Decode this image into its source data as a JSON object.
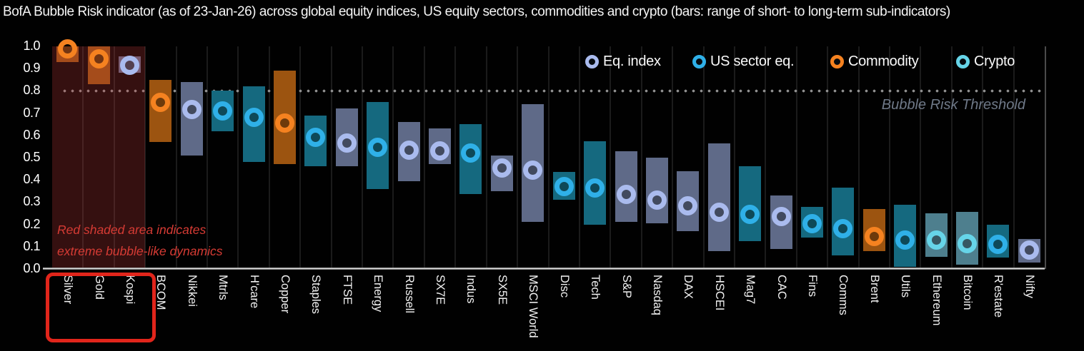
{
  "title": "BofA Bubble Risk indicator (as of 23-Jan-26) across global equity indices, US equity sectors, commodities and crypto (bars: range of short- to long-term sub-indicators)",
  "annotations": {
    "red_area_note_line1": "Red shaded area indicates",
    "red_area_note_line2": "extreme bubble-like dynamics",
    "threshold_label": "Bubble Risk Threshold"
  },
  "legend": [
    {
      "label": "Eq. index",
      "group": "eq_index"
    },
    {
      "label": "US sector eq.",
      "group": "us_sector"
    },
    {
      "label": "Commodity",
      "group": "commodity"
    },
    {
      "label": "Crypto",
      "group": "crypto"
    }
  ],
  "colors": {
    "background": "#010101",
    "title_text": "#f5f5f5",
    "eq_index_bar": "#5f6a88",
    "eq_index_dot": "#aabbee",
    "us_sector_bar": "#15697f",
    "us_sector_dot": "#2fb0e8",
    "commodity_bar": "#9c5410",
    "commodity_dot": "#f58220",
    "crypto_bar": "#4e7f8e",
    "crypto_dot": "#66d4e8",
    "red_overlay": "rgba(190,58,58,0.28)",
    "red_accent": "#e1251b",
    "annotation_red": "#d63b34",
    "threshold_dots": "#8f8f8f",
    "threshold_text": "#6f7988",
    "gridline": "#1b1b1b",
    "axis_line": "#c8c8c8"
  },
  "chart_data": {
    "type": "bar",
    "subtype": "floating-range-bars-with-dot-marker",
    "title": "BofA Bubble Risk indicator (as of 23-Jan-26) across global equity indices, US equity sectors, commodities and crypto (bars: range of short- to long-term sub-indicators)",
    "ylabel": "",
    "xlabel": "",
    "ylim": [
      0,
      1
    ],
    "ytick_labels": [
      "1.0",
      "0.9",
      "0.8",
      "0.7",
      "0.6",
      "0.5",
      "0.4",
      "0.3",
      "0.2",
      "0.1",
      "0.0"
    ],
    "threshold_value": 0.8,
    "grid": "vertical-only",
    "legend_position": "top-right",
    "xlabel_orientation": "vertical",
    "red_zone_categories": [
      "Silver",
      "Gold",
      "Kospi"
    ],
    "points": [
      {
        "name": "Silver",
        "group": "commodity",
        "low": 0.93,
        "high": 1.0,
        "value": 0.99
      },
      {
        "name": "Gold",
        "group": "commodity",
        "low": 0.83,
        "high": 1.0,
        "value": 0.945
      },
      {
        "name": "Kospi",
        "group": "eq_index",
        "low": 0.88,
        "high": 0.955,
        "value": 0.915
      },
      {
        "name": "BCOM",
        "group": "commodity",
        "low": 0.57,
        "high": 0.85,
        "value": 0.75
      },
      {
        "name": "Nikkei",
        "group": "eq_index",
        "low": 0.51,
        "high": 0.84,
        "value": 0.715
      },
      {
        "name": "Mtrls",
        "group": "us_sector",
        "low": 0.62,
        "high": 0.8,
        "value": 0.71
      },
      {
        "name": "H'care",
        "group": "us_sector",
        "low": 0.48,
        "high": 0.82,
        "value": 0.68
      },
      {
        "name": "Copper",
        "group": "commodity",
        "low": 0.47,
        "high": 0.89,
        "value": 0.655
      },
      {
        "name": "Staples",
        "group": "us_sector",
        "low": 0.46,
        "high": 0.69,
        "value": 0.59
      },
      {
        "name": "FTSE",
        "group": "eq_index",
        "low": 0.46,
        "high": 0.72,
        "value": 0.565
      },
      {
        "name": "Energy",
        "group": "us_sector",
        "low": 0.36,
        "high": 0.75,
        "value": 0.545
      },
      {
        "name": "Russell",
        "group": "eq_index",
        "low": 0.395,
        "high": 0.66,
        "value": 0.535
      },
      {
        "name": "SX7E",
        "group": "eq_index",
        "low": 0.47,
        "high": 0.63,
        "value": 0.53
      },
      {
        "name": "Indus",
        "group": "us_sector",
        "low": 0.335,
        "high": 0.65,
        "value": 0.52
      },
      {
        "name": "SX5E",
        "group": "eq_index",
        "low": 0.35,
        "high": 0.51,
        "value": 0.455
      },
      {
        "name": "MSCI World",
        "group": "eq_index",
        "low": 0.21,
        "high": 0.74,
        "value": 0.445
      },
      {
        "name": "Disc",
        "group": "us_sector",
        "low": 0.31,
        "high": 0.435,
        "value": 0.37
      },
      {
        "name": "Tech",
        "group": "us_sector",
        "low": 0.2,
        "high": 0.575,
        "value": 0.365
      },
      {
        "name": "S&P",
        "group": "eq_index",
        "low": 0.21,
        "high": 0.53,
        "value": 0.335
      },
      {
        "name": "Nasdaq",
        "group": "eq_index",
        "low": 0.205,
        "high": 0.5,
        "value": 0.31
      },
      {
        "name": "DAX",
        "group": "eq_index",
        "low": 0.17,
        "high": 0.44,
        "value": 0.285
      },
      {
        "name": "HSCEI",
        "group": "eq_index",
        "low": 0.08,
        "high": 0.565,
        "value": 0.255
      },
      {
        "name": "Mag7",
        "group": "us_sector",
        "low": 0.125,
        "high": 0.46,
        "value": 0.245
      },
      {
        "name": "CAC",
        "group": "eq_index",
        "low": 0.09,
        "high": 0.33,
        "value": 0.235
      },
      {
        "name": "Fins",
        "group": "us_sector",
        "low": 0.14,
        "high": 0.28,
        "value": 0.205
      },
      {
        "name": "Comms",
        "group": "us_sector",
        "low": 0.06,
        "high": 0.365,
        "value": 0.18
      },
      {
        "name": "Brent",
        "group": "commodity",
        "low": 0.08,
        "high": 0.27,
        "value": 0.145
      },
      {
        "name": "Utils",
        "group": "us_sector",
        "low": 0.01,
        "high": 0.29,
        "value": 0.13
      },
      {
        "name": "Ethereum",
        "group": "crypto",
        "low": 0.055,
        "high": 0.25,
        "value": 0.13
      },
      {
        "name": "Bitcoin",
        "group": "crypto",
        "low": 0.02,
        "high": 0.255,
        "value": 0.115
      },
      {
        "name": "R'estate",
        "group": "us_sector",
        "low": 0.05,
        "high": 0.2,
        "value": 0.11
      },
      {
        "name": "Nifty",
        "group": "eq_index",
        "low": 0.03,
        "high": 0.135,
        "value": 0.085
      }
    ]
  }
}
